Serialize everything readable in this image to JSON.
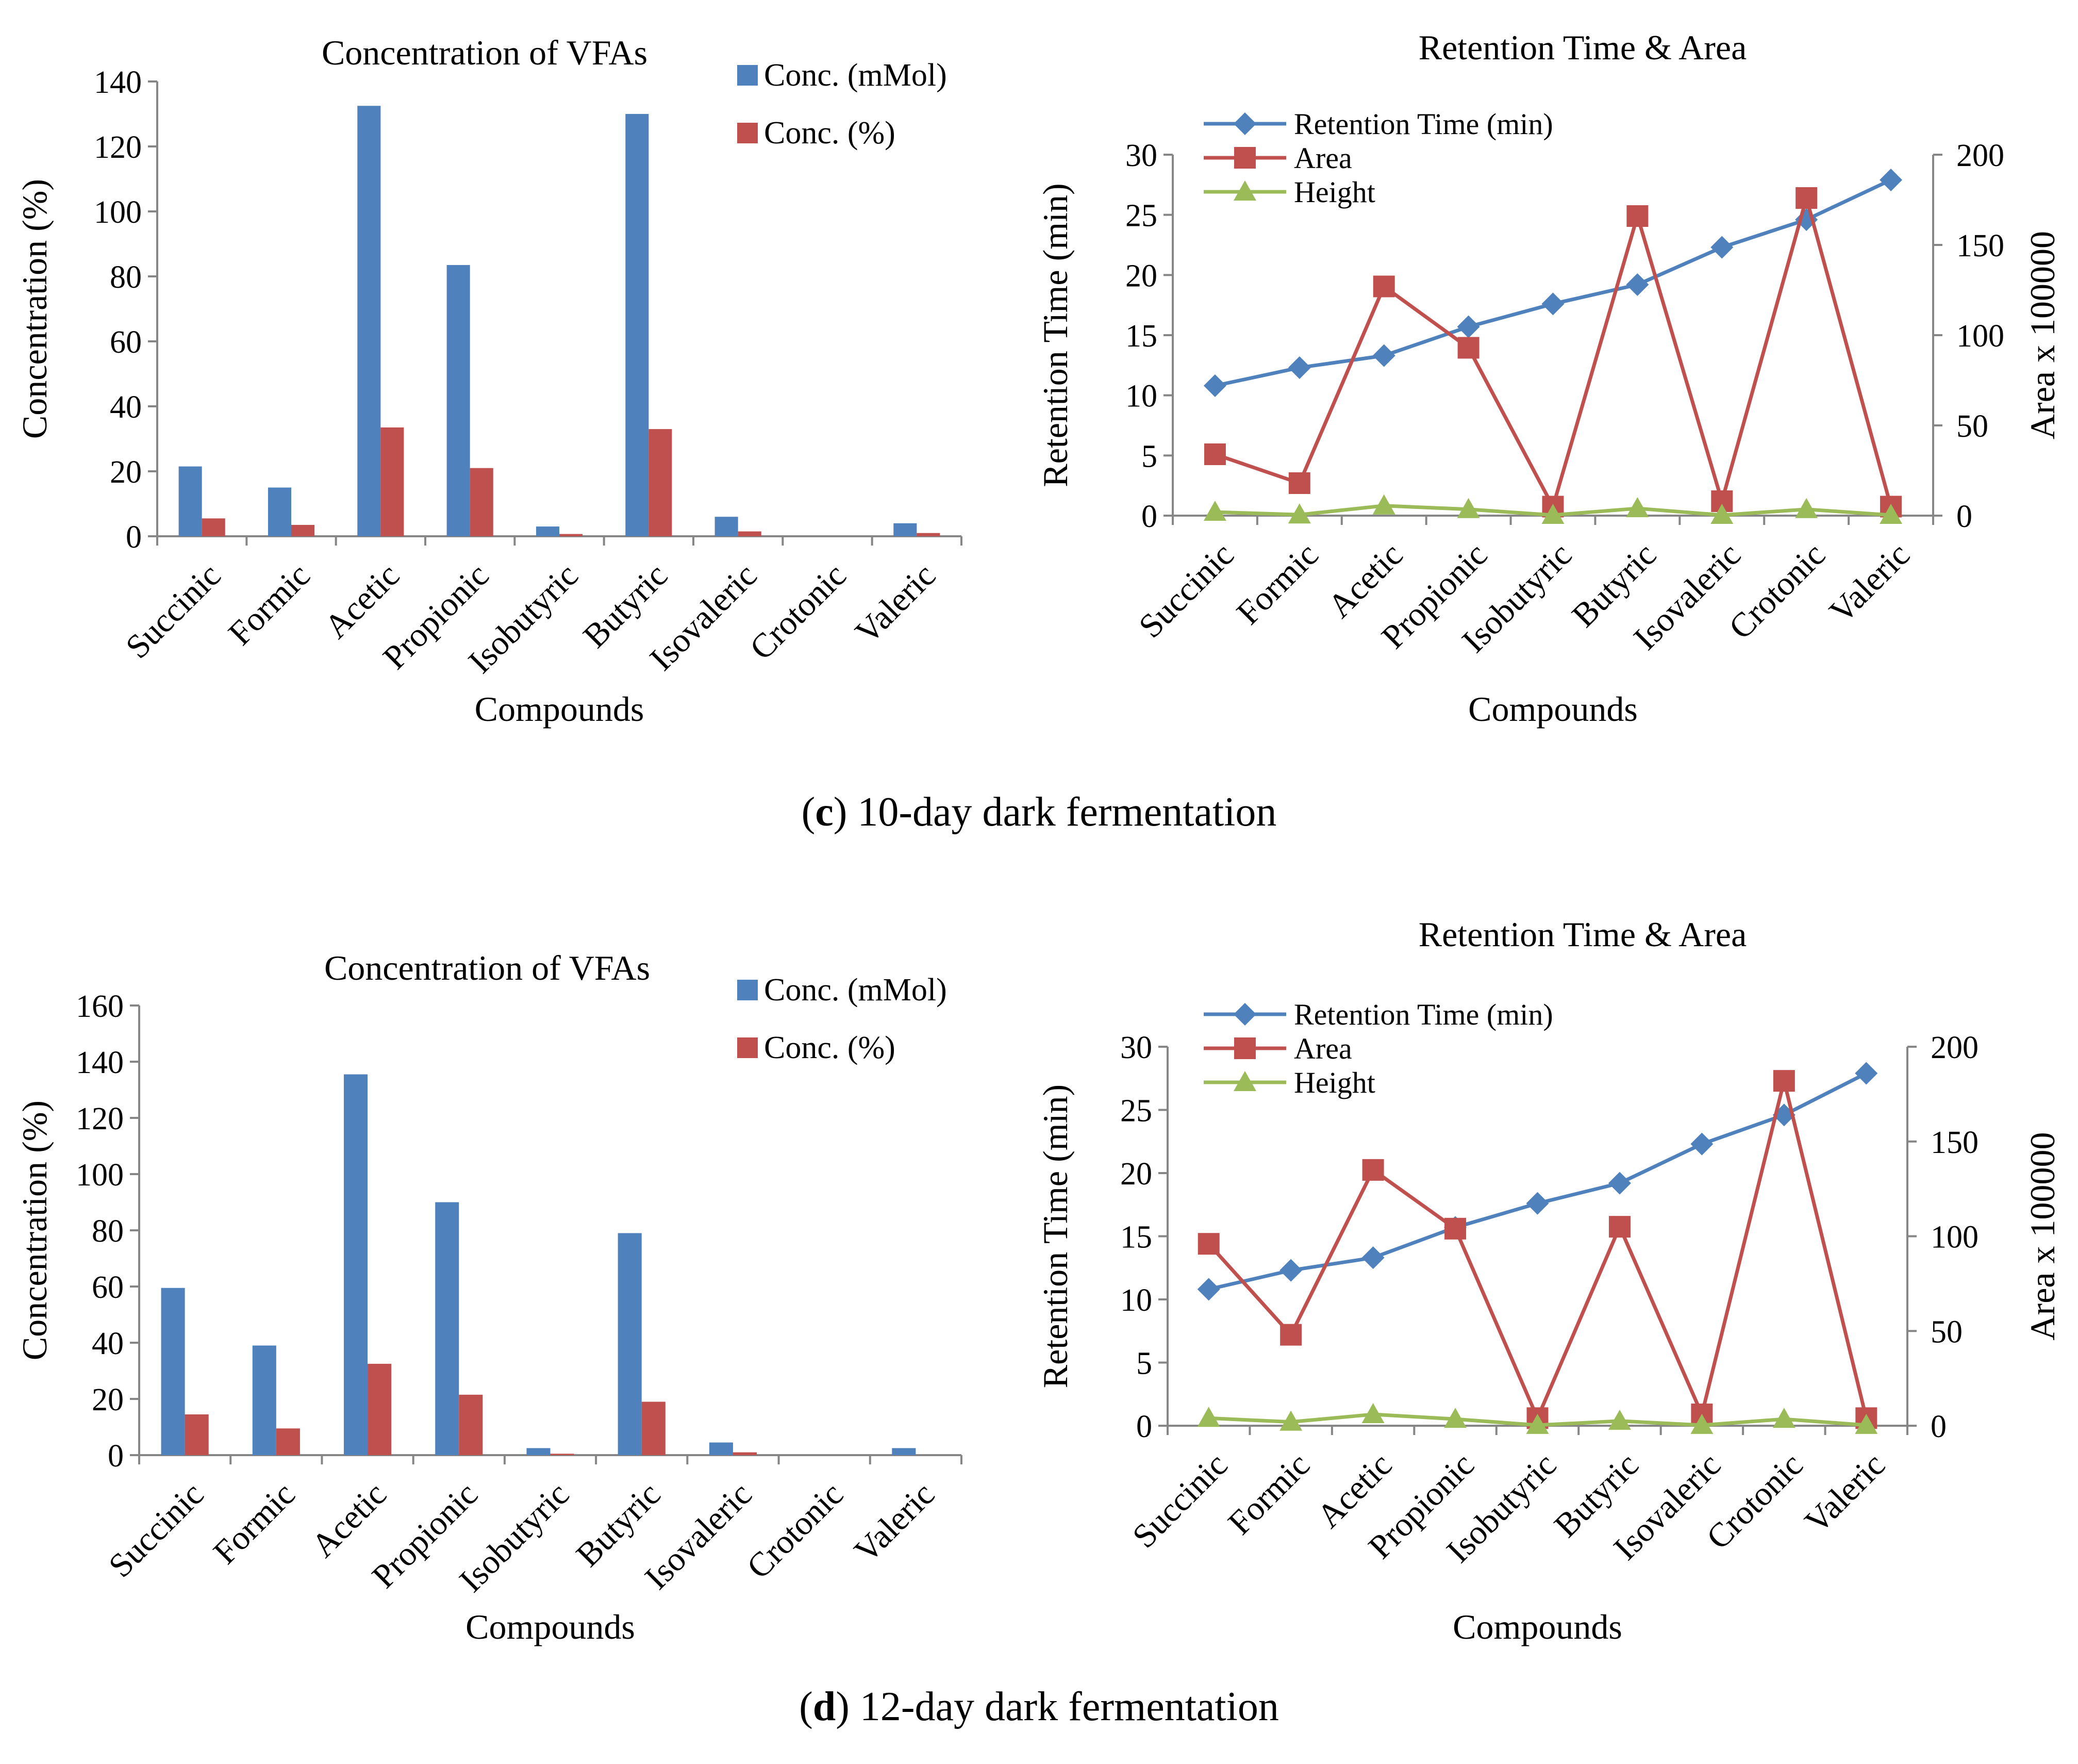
{
  "captions": {
    "c": {
      "letter": "c",
      "text": " 10-day dark fermentation"
    },
    "d": {
      "letter": "d",
      "text": " 12-day dark fermentation"
    }
  },
  "colors": {
    "blue": "#4F81BD",
    "red": "#C0504D",
    "green": "#9BBB59"
  },
  "chart_data": [
    {
      "id": "c-bar",
      "type": "bar",
      "title": "Concentration of VFAs",
      "xlabel": "Compounds",
      "ylabel": "Concentration (%)",
      "ylim": [
        0,
        140
      ],
      "yticks": [
        0,
        20,
        40,
        60,
        80,
        100,
        120,
        140
      ],
      "categories": [
        "Succinic",
        "Formic",
        "Acetic",
        "Propionic",
        "Isobutyric",
        "Butyric",
        "Isovaleric",
        "Crotonic",
        "Valeric"
      ],
      "series": [
        {
          "name": "Conc. (mMol)",
          "color": "#4F81BD",
          "values": [
            21.5,
            15,
            132.5,
            83.5,
            3,
            130,
            6,
            0,
            4
          ]
        },
        {
          "name": "Conc. (%)",
          "color": "#C0504D",
          "values": [
            5.5,
            3.5,
            33.5,
            21,
            0.7,
            33,
            1.5,
            0,
            1
          ]
        }
      ],
      "legend": "top-right",
      "grid": false
    },
    {
      "id": "c-line",
      "type": "line",
      "title": "Retention Time & Area",
      "xlabel": "Compounds",
      "ylabel": "Retention Time (min)",
      "y2label": "Area  x 100000",
      "ylim": [
        0,
        30
      ],
      "yticks": [
        0,
        5,
        10,
        15,
        20,
        25,
        30
      ],
      "y2lim": [
        0,
        200
      ],
      "y2ticks": [
        0,
        50,
        100,
        150,
        200
      ],
      "categories": [
        "Succinic",
        "Formic",
        "Acetic",
        "Propionic",
        "Isobutyric",
        "Butyric",
        "Isovaleric",
        "Crotonic",
        "Valeric"
      ],
      "series": [
        {
          "name": "Retention Time (min)",
          "axis": "left",
          "marker": "diamond",
          "color": "#4F81BD",
          "values": [
            10.8,
            12.3,
            13.3,
            15.7,
            17.6,
            19.2,
            22.3,
            24.6,
            27.9
          ]
        },
        {
          "name": "Area",
          "axis": "right",
          "marker": "square",
          "color": "#C0504D",
          "values": [
            34,
            18,
            127,
            93,
            5,
            166,
            8,
            176,
            5
          ]
        },
        {
          "name": "Height",
          "axis": "right",
          "marker": "triangle",
          "color": "#9BBB59",
          "values": [
            2,
            0.5,
            5.5,
            3.5,
            0.3,
            4,
            0.3,
            3.5,
            0.3
          ]
        }
      ],
      "legend": "top-left",
      "grid": false
    },
    {
      "id": "d-bar",
      "type": "bar",
      "title": "Concentration of VFAs",
      "xlabel": "Compounds",
      "ylabel": "Concentration (%)",
      "ylim": [
        0,
        160
      ],
      "yticks": [
        0,
        20,
        40,
        60,
        80,
        100,
        120,
        140,
        160
      ],
      "categories": [
        "Succinic",
        "Formic",
        "Acetic",
        "Propionic",
        "Isobutyric",
        "Butyric",
        "Isovaleric",
        "Crotonic",
        "Valeric"
      ],
      "series": [
        {
          "name": "Conc. (mMol)",
          "color": "#4F81BD",
          "values": [
            59.5,
            39,
            135.5,
            90,
            2.5,
            79,
            4.5,
            0,
            2.5
          ]
        },
        {
          "name": "Conc. (%)",
          "color": "#C0504D",
          "values": [
            14.5,
            9.5,
            32.5,
            21.5,
            0.5,
            19,
            1,
            0,
            0
          ]
        }
      ],
      "legend": "top-right",
      "grid": false
    },
    {
      "id": "d-line",
      "type": "line",
      "title": "Retention Time & Area",
      "xlabel": "Compounds",
      "ylabel": "Retention Time (min)",
      "y2label": "Area x 100000",
      "ylim": [
        0,
        30
      ],
      "yticks": [
        0,
        5,
        10,
        15,
        20,
        25,
        30
      ],
      "y2lim": [
        0,
        200
      ],
      "y2ticks": [
        0,
        50,
        100,
        150,
        200
      ],
      "categories": [
        "Succinic",
        "Formic",
        "Acetic",
        "Propionic",
        "Isobutyric",
        "Butyric",
        "Isovaleric",
        "Crotonic",
        "Valeric"
      ],
      "series": [
        {
          "name": "Retention Time (min)",
          "axis": "left",
          "marker": "diamond",
          "color": "#4F81BD",
          "values": [
            10.8,
            12.3,
            13.3,
            15.7,
            17.6,
            19.2,
            22.3,
            24.6,
            27.9
          ]
        },
        {
          "name": "Area",
          "axis": "right",
          "marker": "square",
          "color": "#C0504D",
          "values": [
            96,
            48,
            135,
            104,
            4,
            105,
            6,
            182,
            4
          ]
        },
        {
          "name": "Height",
          "axis": "right",
          "marker": "triangle",
          "color": "#9BBB59",
          "values": [
            4,
            2,
            6,
            3.5,
            0.3,
            2.5,
            0.3,
            3.5,
            0.3
          ]
        }
      ],
      "legend": "top-left",
      "grid": false
    }
  ]
}
